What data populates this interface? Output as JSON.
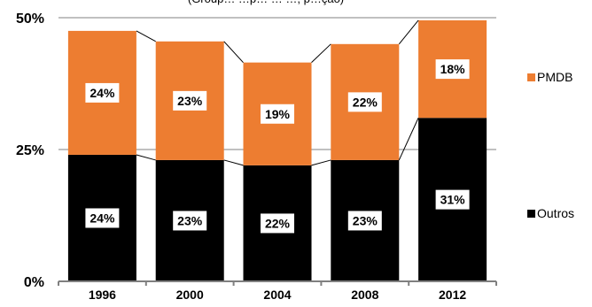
{
  "chart_data": {
    "type": "bar",
    "stacked": true,
    "subtitle_visible": "(Group… …p… … …, p…ção)",
    "categories": [
      "1996",
      "2000",
      "2004",
      "2008",
      "2012"
    ],
    "series": [
      {
        "name": "Outros",
        "values": [
          24,
          23,
          22,
          23,
          31
        ],
        "labels": [
          "24%",
          "23%",
          "22%",
          "23%",
          "31%"
        ],
        "color": "#000000"
      },
      {
        "name": "PMDB",
        "values": [
          24,
          23,
          19,
          22,
          18
        ],
        "labels": [
          "24%",
          "23%",
          "19%",
          "22%",
          "18%"
        ],
        "color": "#ED7D31"
      }
    ],
    "stack_tops": [
      47.5,
      45.5,
      41.5,
      45.0,
      49.5
    ],
    "ylim": [
      0,
      50
    ],
    "yticks": [
      0,
      25,
      50
    ],
    "ytick_labels": [
      "0%",
      "25%",
      "50%"
    ],
    "grid": true,
    "legend_position": "right"
  }
}
